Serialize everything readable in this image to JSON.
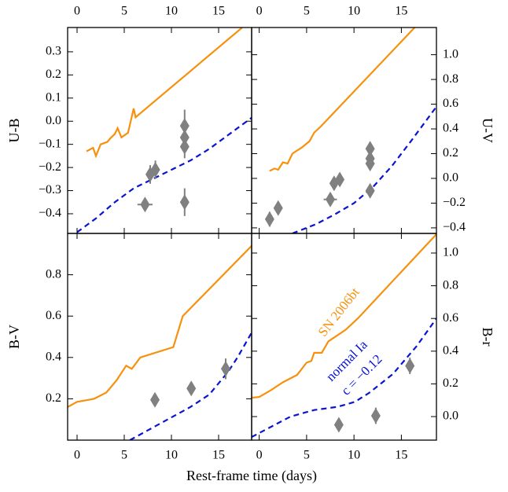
{
  "xlabel": "Rest-frame time (days)",
  "chart_data": [
    {
      "type": "line",
      "ylabel": "U-B",
      "xaxis_labels": "top",
      "yaxis_side": "left",
      "xlim": [
        -1,
        18.5
      ],
      "xticks": [
        0,
        5,
        10,
        15
      ],
      "ylim": [
        -0.485,
        0.405
      ],
      "yticks": [
        {
          "value": -0.4,
          "label": "−0.4"
        },
        {
          "value": -0.3,
          "label": "−0.3"
        },
        {
          "value": -0.2,
          "label": "−0.2"
        },
        {
          "value": -0.1,
          "label": "−0.1"
        },
        {
          "value": 0,
          "label": "0.0"
        },
        0.1,
        0.2,
        0.3
      ],
      "series": [
        {
          "color": "#f7910d",
          "style": "solid",
          "x": [
            1,
            1.7,
            2,
            2.5,
            3.2,
            3.5,
            4,
            4.3,
            4.7,
            5.4,
            6,
            6.2,
            17.5
          ],
          "values": [
            -0.13,
            -0.115,
            -0.15,
            -0.1,
            -0.09,
            -0.075,
            -0.055,
            -0.03,
            -0.07,
            -0.05,
            0.055,
            0.017,
            0.405
          ]
        },
        {
          "color": "#0a14d2",
          "style": "dashed",
          "x": [
            0,
            2,
            4,
            6,
            8,
            10,
            12,
            14,
            16,
            18.5
          ],
          "values": [
            -0.48,
            -0.42,
            -0.35,
            -0.29,
            -0.25,
            -0.21,
            -0.17,
            -0.12,
            -0.06,
            0.015
          ]
        }
      ],
      "points": {
        "color": "#808080",
        "x": [
          7.2,
          7.75,
          8.3,
          11.4,
          11.4,
          11.4,
          11.4
        ],
        "values": [
          -0.36,
          -0.23,
          -0.21,
          -0.02,
          -0.07,
          -0.11,
          -0.35
        ],
        "yerr": [
          0.02,
          0.04,
          0.04,
          0.07,
          0.03,
          0.05,
          0.06
        ],
        "xerr": [
          0.8,
          0,
          0,
          0,
          0,
          0,
          0
        ]
      }
    },
    {
      "type": "line",
      "ylabel": "U-V",
      "xaxis_labels": "top",
      "yaxis_side": "right",
      "xlim": [
        -0.8,
        18.7
      ],
      "xticks": [
        0,
        5,
        10,
        15
      ],
      "ylim": [
        -0.445,
        1.22
      ],
      "yticks": [
        {
          "value": -0.4,
          "label": "−0.4"
        },
        {
          "value": -0.2,
          "label": "−0.2"
        },
        {
          "value": 0,
          "label": "0.0"
        },
        0.2,
        0.4,
        0.6,
        0.8,
        {
          "value": 1,
          "label": "1.0"
        }
      ],
      "series": [
        {
          "color": "#f7910d",
          "style": "solid",
          "x": [
            1.1,
            1.6,
            2,
            2.5,
            3,
            3.5,
            4.5,
            5.3,
            5.8,
            6.5,
            16.4
          ],
          "values": [
            0.06,
            0.08,
            0.07,
            0.13,
            0.12,
            0.2,
            0.25,
            0.3,
            0.37,
            0.42,
            1.22
          ]
        },
        {
          "color": "#0a14d2",
          "style": "dashed",
          "x": [
            3.5,
            6,
            8,
            10,
            12,
            14,
            16,
            18.7
          ],
          "values": [
            -0.445,
            -0.37,
            -0.29,
            -0.2,
            -0.07,
            0.1,
            0.3,
            0.58
          ]
        }
      ],
      "points": {
        "color": "#808080",
        "x": [
          1.1,
          2,
          7.5,
          7.9,
          8.5,
          11.7,
          11.7,
          11.7,
          11.7
        ],
        "values": [
          -0.33,
          -0.24,
          -0.17,
          -0.04,
          -0.01,
          0.24,
          0.16,
          0.12,
          -0.1
        ],
        "yerr": [
          0.06,
          0.03,
          0.04,
          0.03,
          0.03,
          0.05,
          0.04,
          0.03,
          0.03
        ],
        "xerr": [
          0,
          0,
          0.7,
          0,
          0,
          0,
          0,
          0,
          0
        ]
      }
    },
    {
      "type": "line",
      "ylabel": "B-V",
      "xaxis_labels": "bottom",
      "yaxis_side": "left",
      "xlim": [
        -1,
        18.5
      ],
      "xticks": [
        0,
        5,
        10,
        15
      ],
      "ylim": [
        0,
        1.0
      ],
      "yticks": [
        0.2,
        0.4,
        0.6,
        0.8
      ],
      "series": [
        {
          "color": "#f7910d",
          "style": "solid",
          "x": [
            -1,
            0,
            1.8,
            3.1,
            4.2,
            5.2,
            5.8,
            6.7,
            10.2,
            11.2,
            18.5
          ],
          "values": [
            0.16,
            0.185,
            0.2,
            0.23,
            0.29,
            0.36,
            0.345,
            0.4,
            0.45,
            0.6,
            0.94
          ]
        },
        {
          "color": "#0a14d2",
          "style": "dashed",
          "x": [
            5.6,
            8,
            10,
            12,
            14,
            16,
            17,
            18.5
          ],
          "values": [
            0,
            0.06,
            0.11,
            0.16,
            0.22,
            0.33,
            0.4,
            0.52
          ]
        }
      ],
      "points": {
        "color": "#808080",
        "x": [
          8.25,
          12.1,
          15.75
        ],
        "values": [
          0.195,
          0.25,
          0.345
        ],
        "yerr": [
          0.02,
          0.03,
          0.05
        ],
        "xerr": [
          0,
          0,
          0
        ]
      }
    },
    {
      "type": "line",
      "ylabel": "B-r",
      "xaxis_labels": "bottom",
      "yaxis_side": "right",
      "xlim": [
        -0.8,
        18.7
      ],
      "xticks": [
        0,
        5,
        10,
        15
      ],
      "ylim": [
        -0.144,
        1.12
      ],
      "yticks": [
        {
          "value": 0,
          "label": "0.0"
        },
        0.2,
        0.4,
        0.6,
        0.8,
        {
          "value": 1,
          "label": "1.0"
        }
      ],
      "annotations": [
        "SN 2006bt",
        "normal Ia",
        "c = −0.12"
      ],
      "series": [
        {
          "color": "#f7910d",
          "style": "solid",
          "x": [
            -0.8,
            0,
            1.2,
            2.5,
            4,
            5,
            5.5,
            5.8,
            6.6,
            7.3,
            9.1,
            10.4,
            18.7
          ],
          "values": [
            0.115,
            0.12,
            0.16,
            0.21,
            0.255,
            0.33,
            0.34,
            0.39,
            0.39,
            0.46,
            0.53,
            0.6,
            1.115
          ]
        },
        {
          "color": "#0a14d2",
          "style": "dashed",
          "x": [
            -0.8,
            3.3,
            5.8,
            8.3,
            10.1,
            11.6,
            14.1,
            16.6,
            18.7
          ],
          "values": [
            -0.125,
            0,
            0.04,
            0.06,
            0.09,
            0.145,
            0.26,
            0.43,
            0.6
          ]
        }
      ],
      "points": {
        "color": "#808080",
        "x": [
          8.4,
          12.3,
          15.9
        ],
        "values": [
          -0.05,
          0.005,
          0.31
        ],
        "yerr": [
          0.02,
          0.05,
          0.05
        ],
        "xerr": [
          0,
          0,
          0
        ]
      }
    }
  ]
}
